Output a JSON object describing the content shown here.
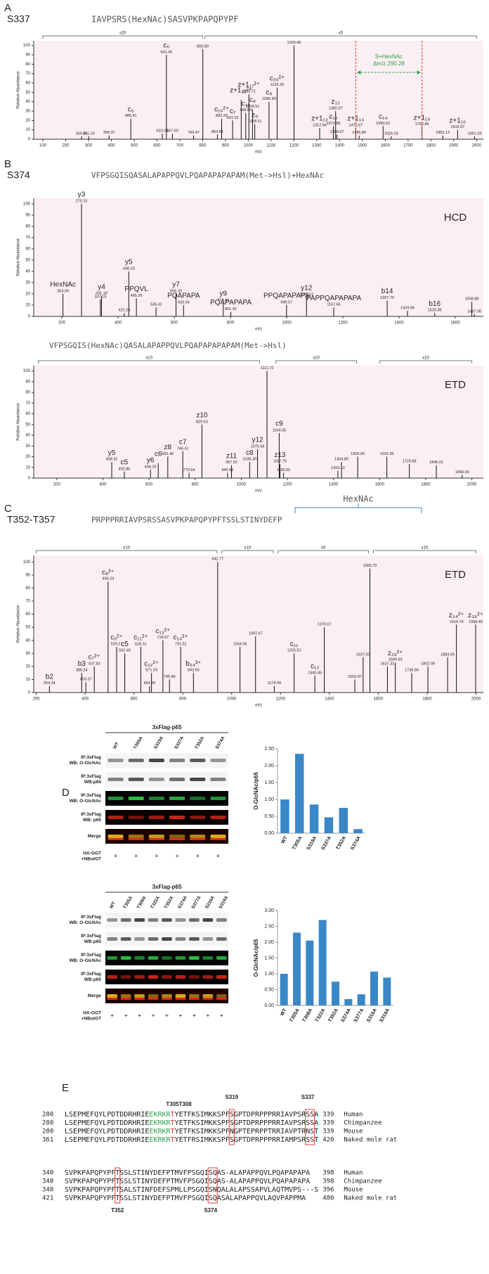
{
  "chart_data": [
    {
      "type": "spectrum",
      "letter": "A",
      "title": "S337",
      "sequence": "IAVPSRS(HexNAc)SASVPKPAPQPYPF",
      "xlabel": "m/z",
      "ylabel": "Relative Abundance",
      "background": "#fbeff3",
      "color": "#111",
      "xlim": [
        60,
        2030
      ],
      "xticks": [
        100,
        200,
        300,
        400,
        500,
        600,
        700,
        800,
        900,
        1000,
        1100,
        1200,
        1300,
        1400,
        1500,
        1600,
        1700,
        1800,
        1900,
        2000
      ],
      "ylim": [
        0,
        105
      ],
      "yticks": [
        0,
        10,
        20,
        30,
        40,
        50,
        60,
        70,
        80,
        90,
        100
      ],
      "zooms": [
        {
          "label": "x20",
          "range": [
            100,
            800
          ]
        },
        {
          "label": "x5",
          "range": [
            810,
            2000
          ]
        }
      ],
      "x": [
        269.41,
        301.24,
        390.37,
        485.41,
        623.26,
        641.45,
        667.6,
        760.47,
        800.8,
        864.81,
        883.29,
        931.52,
        969,
        988.89,
        1002.71,
        1018.51,
        1028.51,
        1090.83,
        1126.39,
        1200.46,
        1312.84,
        1372.89,
        1382.67,
        1388.67,
        1470.67,
        1485.86,
        1590.62,
        1626.03,
        1760.85,
        1852.12,
        1916.97,
        1991.39
      ],
      "values": [
        3,
        3,
        4,
        22,
        6,
        90,
        6,
        4,
        96,
        5,
        22,
        20,
        42,
        28,
        48,
        32,
        16,
        40,
        55,
        100,
        12,
        14,
        30,
        5,
        12,
        4,
        14,
        3,
        13,
        4,
        10,
        3
      ],
      "x_labels": [
        "269.41",
        "301.24",
        "390.37",
        "485.41",
        "623.26",
        "641.45",
        "667.60",
        "760.47",
        "800.80",
        "864.81",
        "883.29",
        "931.52",
        null,
        "988.89",
        "1002.71",
        "1018.51",
        "1028.51",
        "1090.83",
        "1126.39",
        "1200.46",
        "1312.84",
        "1372.89",
        "1382.67",
        "1388.67",
        "1470.67",
        "1485.86",
        "1590.62",
        "1626.03",
        "1760.85",
        "1852.12",
        "1916.97",
        "1991.39"
      ],
      "ion_labels": [
        null,
        null,
        null,
        "c₅",
        null,
        "c₆",
        null,
        null,
        null,
        null,
        "c₁₆²⁺",
        "c₇",
        "z+1₁₆²⁺",
        "c₁₈",
        "z+1₁₇²⁺",
        "c₈",
        "z₉",
        "c₉",
        "c₂₀²⁺",
        null,
        "z+1₁₂",
        "c₁₂",
        "z₁₃",
        null,
        "z+1₁₄",
        null,
        "c₁₄",
        null,
        "z+1₁₅",
        null,
        "z+1₁₆",
        null
      ],
      "annotation": {
        "lines": [
          1470.67,
          1760.85
        ],
        "text": [
          "S+HexNAc",
          "Δm/z 290.28"
        ],
        "color": "#e53935",
        "arrow_color": "#2e9d4a"
      }
    },
    {
      "type": "spectrum",
      "letter": "B",
      "title": "S374",
      "sequence": "VFPSGQISQASALAPAPPQVLPQAPAPAPAPAM(Met->Hsl)+HexNAc",
      "method": "HCD",
      "xlabel": "m/z",
      "ylabel": "Relative Abundance",
      "background": "#fbeff3",
      "color": "#111",
      "xlim": [
        100,
        1700
      ],
      "xticks": [
        200,
        400,
        600,
        800,
        1000,
        1200,
        1400,
        1600
      ],
      "ylim": [
        0,
        105
      ],
      "yticks": [
        0,
        10,
        20,
        30,
        40,
        50,
        60,
        70,
        80,
        90,
        100
      ],
      "x": [
        204.09,
        270.15,
        337.19,
        341.18,
        422.24,
        438.23,
        465.26,
        535.32,
        606.32,
        633.34,
        774.41,
        801.42,
        999.57,
        1070.57,
        1167.66,
        1357.7,
        1429.96,
        1526.85,
        1658.88,
        1667.95
      ],
      "values": [
        20,
        100,
        15,
        18,
        3,
        40,
        16,
        8,
        20,
        10,
        12,
        4,
        10,
        17,
        8,
        14,
        5,
        3,
        13,
        2
      ],
      "x_labels": [
        "204.09",
        "270.15",
        "337.19",
        "341.18",
        "422.24",
        "438.23",
        "465.26",
        "535.32",
        "606.32",
        "633.34",
        "774.41",
        "801.42",
        "999.57",
        "1070.57",
        "1167.66",
        "1357.70",
        "1429.96",
        "1526.85",
        "1658.88",
        "1667.95"
      ],
      "ion_labels": [
        "HexNAc",
        "y3",
        null,
        "y4",
        null,
        "y5",
        "PPQVL",
        null,
        "y7",
        "PQAPAPA",
        "y9",
        "PQAPAPAPA",
        "PPQAPAPAPA",
        "y12",
        "PAPPQAPAPAPA",
        "b14",
        null,
        "b16",
        null,
        null
      ]
    },
    {
      "type": "spectrum",
      "sequence": "VFPSGQIS(HexNAc)QASALAPAPPQVLPQAPAPAPAPAM(Met->Hsl)",
      "method": "ETD",
      "xlabel": "m/z",
      "ylabel": "Relative Abundance",
      "background": "#fbeff3",
      "color": "#111",
      "xlim": [
        100,
        2050
      ],
      "xticks": [
        200,
        400,
        600,
        800,
        1000,
        1200,
        1400,
        1600,
        1800,
        2000
      ],
      "ylim": [
        0,
        105
      ],
      "yticks": [
        0,
        10,
        20,
        30,
        40,
        50,
        60,
        70,
        80,
        90,
        100
      ],
      "zooms": [
        {
          "label": "x10",
          "range": [
            120,
            1080
          ]
        },
        {
          "label": "x10",
          "range": [
            1150,
            1500
          ]
        },
        {
          "label": "x10",
          "range": [
            1600,
            2000
          ]
        }
      ],
      "x": [
        438.32,
        492.86,
        606.29,
        640,
        681.4,
        746.41,
        773.64,
        829.53,
        940.52,
        957.52,
        1036.3,
        1070.58,
        1111.72,
        1164.55,
        1167.75,
        1183.55,
        1419.1,
        1434.8,
        1505,
        1631.45,
        1728.88,
        1846.01,
        1958
      ],
      "values": [
        15,
        6,
        8,
        14,
        20,
        25,
        5,
        50,
        5,
        12,
        15,
        27,
        100,
        42,
        13,
        5,
        7,
        15,
        20,
        20,
        13,
        12,
        3
      ],
      "x_labels": [
        "438.32",
        "492.86",
        "606.29",
        null,
        "681.40",
        "746.41",
        "773.64",
        "829.53",
        "940.52",
        "957.52",
        "1036.30",
        "1070.58",
        "1111.72",
        "1164.55",
        "1167.75",
        "1183.55",
        "1419.10",
        "1434.80",
        "1505.00",
        "1631.45",
        "1728.88",
        "1846.01",
        "1958.00"
      ],
      "ion_labels": [
        "y5",
        "c5",
        "y6",
        "c6",
        "z8",
        "c7",
        null,
        "z10",
        null,
        "z11",
        "c8",
        "y12",
        null,
        "c9",
        "z13",
        null,
        null,
        null,
        null,
        null,
        null,
        null,
        null
      ]
    },
    {
      "type": "spectrum",
      "letter": "C",
      "title": "T352-T357",
      "sequence": "PRPPPRRIAVPSRSSASVPKPAPQPYPFTSSLSTINYDEFP",
      "sequence_note": "HexNAc",
      "method": "ETD",
      "xlabel": "m/z",
      "ylabel": "Relative Abundance",
      "background": "#fbeff3",
      "color": "#111",
      "xlim": [
        190,
        2030
      ],
      "xticks": [
        200,
        400,
        600,
        800,
        1000,
        1200,
        1400,
        1600,
        1800,
        2000
      ],
      "ylim": [
        0,
        105
      ],
      "yticks": [
        0,
        10,
        20,
        30,
        40,
        50,
        60,
        70,
        80,
        90,
        100
      ],
      "zooms": [
        {
          "label": "x10",
          "range": [
            200,
            940
          ]
        },
        {
          "label": "x10",
          "range": [
            960,
            1170
          ]
        },
        {
          "label": "x5",
          "range": [
            1190,
            1560
          ]
        },
        {
          "label": "x10",
          "range": [
            1580,
            2000
          ]
        }
      ],
      "x": [
        254.24,
        386.24,
        403.37,
        437.83,
        494.24,
        529.27,
        562.49,
        628.31,
        664.06,
        671.93,
        718.67,
        745.49,
        791.52,
        843.65,
        942.77,
        1034.06,
        1097.67,
        1174.49,
        1255.52,
        1340.45,
        1379.07,
        1503.97,
        1537.93,
        1565.7,
        1637.31,
        1669.63,
        1736.84,
        1802.99,
        1883.65,
        1919.74,
        1998.49
      ],
      "values": [
        5,
        15,
        8,
        20,
        85,
        35,
        30,
        35,
        5,
        15,
        40,
        10,
        35,
        15,
        100,
        35,
        43,
        5,
        30,
        13,
        50,
        10,
        27,
        95,
        20,
        23,
        15,
        20,
        27,
        52,
        52
      ],
      "x_labels": [
        "254.24",
        "386.24",
        "403.37",
        "437.83",
        "494.24",
        "529.27",
        "562.49",
        "628.31",
        "664.06",
        "671.93",
        "718.67",
        "745.49",
        "791.52",
        "843.65",
        "942.77",
        "1034.06",
        "1097.67",
        "1174.49",
        "1255.52",
        "1340.45",
        "1379.07",
        "1503.97",
        "1537.93",
        "1565.70",
        "1637.31",
        "1669.63",
        "1736.84",
        "1802.99",
        "1883.65",
        "1919.74",
        "1998.49"
      ],
      "ion_labels": [
        "b2",
        "b3",
        null,
        "c₇²⁺",
        "c₈²⁺",
        "c₉²⁺",
        "c5",
        "c₁₁²⁺",
        null,
        "c₁₂²⁺",
        "c₁₃²⁺",
        null,
        "c₁₄²⁺",
        "b₂₄³⁺",
        null,
        null,
        null,
        null,
        "c₁₁",
        "c₁₂",
        null,
        null,
        null,
        null,
        null,
        "z₂₉²⁺",
        null,
        null,
        null,
        "z₃₄²⁺",
        "z₃₅²⁺"
      ]
    },
    {
      "type": "bar",
      "letter": "D",
      "ylabel": "O-GlcNAc/p65",
      "color": "#3a87c8",
      "categories": [
        "WT",
        "T305A",
        "S319A",
        "S337A",
        "T352A",
        "S374A"
      ],
      "values": [
        1.0,
        2.35,
        0.85,
        0.47,
        0.75,
        0.12
      ],
      "ylim": [
        0,
        2.5
      ],
      "yticks": [
        {
          "value": 0,
          "label": "0.00"
        },
        {
          "value": 0.5,
          "label": "0.50"
        },
        {
          "value": 1,
          "label": "1.00"
        },
        {
          "value": 1.5,
          "label": "1.50"
        },
        {
          "value": 2,
          "label": "2.00"
        },
        {
          "value": 2.5,
          "label": "2.50"
        }
      ]
    },
    {
      "type": "bar",
      "ylabel": "O-GlcNAc/p65",
      "color": "#3a87c8",
      "categories": [
        "WT",
        "T305A",
        "T308A",
        "T322A",
        "T352A",
        "S374A",
        "S377A",
        "S316A",
        "S319A"
      ],
      "values": [
        1.0,
        2.3,
        2.05,
        2.7,
        0.75,
        0.2,
        0.35,
        1.07,
        0.88
      ],
      "ylim": [
        0,
        3
      ],
      "yticks": [
        {
          "value": 0,
          "label": "0.00"
        },
        {
          "value": 0.5,
          "label": "0.50"
        },
        {
          "value": 1,
          "label": "1.00"
        },
        {
          "value": 1.5,
          "label": "1.50"
        },
        {
          "value": 2,
          "label": "2.00"
        },
        {
          "value": 2.5,
          "label": "2.50"
        },
        {
          "value": 3,
          "label": "3.00"
        }
      ]
    }
  ],
  "blots": [
    {
      "title": "3xFlag-p65",
      "lanes": [
        "WT",
        "T305A",
        "S319A",
        "S337A",
        "T352A",
        "S374A"
      ],
      "rows": [
        {
          "label": [
            "IP:3xFlag",
            "WB: O-GlcNAc"
          ],
          "style": "gray"
        },
        {
          "label": [
            "IP:3xFlag",
            "WB:p65"
          ],
          "style": "gray"
        },
        {
          "label": [
            "IP:3xFlag",
            "WB: O-GlcNAc"
          ],
          "style": "green"
        },
        {
          "label": [
            "IP:3xFlag",
            "WB: p65"
          ],
          "style": "red"
        },
        {
          "label": [
            "Merge"
          ],
          "style": "merge"
        }
      ],
      "treatment": [
        "HA-OGT",
        "+NButGT"
      ],
      "sign": "+"
    },
    {
      "title": "3xFlag-p65",
      "lanes": [
        "WT",
        "T305A",
        "T308A",
        "T322A",
        "T352A",
        "S374A",
        "S377A",
        "S316A",
        "S319A"
      ],
      "rows": [
        {
          "label": [
            "IP:3xFlag",
            "WB: O-GlcNAc"
          ],
          "style": "gray"
        },
        {
          "label": [
            "IP:3xFlag",
            "WB:p65"
          ],
          "style": "gray"
        },
        {
          "label": [
            "IP:3xFlag",
            "WB: O-GlcNAc"
          ],
          "style": "green"
        },
        {
          "label": [
            "IP:3xFlag",
            "WB:p65"
          ],
          "style": "red"
        },
        {
          "label": [
            "Merge"
          ],
          "style": "merge"
        }
      ],
      "treatment": [
        "HA-OGT",
        "+NButGT"
      ],
      "sign": "+"
    }
  ],
  "alignment": {
    "letter": "E",
    "blocks": [
      {
        "marks": [
          "T305",
          "T308",
          "S319",
          "S337"
        ],
        "rows": [
          {
            "start": 280,
            "segments": [
              {
                "text": "LSEPMEFQYLPDTDDRHRIE",
                "color": "#222"
              },
              {
                "text": "EKRKR",
                "color": "#2e9d4a"
              },
              {
                "text": "T",
                "color": "#e53935"
              },
              {
                "text": "YETFKSIMKKSPFSGPTDPRPPPRRIAVPSRSSA",
                "color": "#222"
              }
            ],
            "end": 339,
            "species": "Human"
          },
          {
            "start": 280,
            "segments": [
              {
                "text": "LSEPMEFQYLPDTDDRHRIE",
                "color": "#222"
              },
              {
                "text": "EKRKR",
                "color": "#2e9d4a"
              },
              {
                "text": "T",
                "color": "#e53935"
              },
              {
                "text": "YETFKSIMKKSPFSGPTDPRPPPRRIAVPSRSSA",
                "color": "#222"
              }
            ],
            "end": 339,
            "species": "Chimpanzee"
          },
          {
            "start": 280,
            "segments": [
              {
                "text": "LSEPMEFQYLPDTDDRHRIE",
                "color": "#222"
              },
              {
                "text": "EKRKR",
                "color": "#2e9d4a"
              },
              {
                "text": "T",
                "color": "#e53935"
              },
              {
                "text": "YETFKSIMKKSPFNGPTEPRPPTRRIAVPTRNST",
                "color": "#222"
              }
            ],
            "end": 339,
            "species": "Mouse"
          },
          {
            "start": 361,
            "segments": [
              {
                "text": "LSEPMEFQYLPDTDDRHRIE",
                "color": "#222"
              },
              {
                "text": "EKRKR",
                "color": "#2e9d4a"
              },
              {
                "text": "T",
                "color": "#e53935"
              },
              {
                "text": "YETFRSIMKKSPFSGPTDPRPPPRRIAMPSRSST",
                "color": "#222"
              }
            ],
            "end": 420,
            "species": "Naked mole rat"
          }
        ]
      },
      {
        "marks": [
          "T352",
          "S374"
        ],
        "rows": [
          {
            "start": 340,
            "segments": [
              {
                "text": "SVPKPAPQPYPFTSSLSTINYDEFPTMVFPSGQISQAS-ALAPAPPQVLPQAPAPAPA",
                "color": "#222"
              }
            ],
            "end": 398,
            "species": "Human"
          },
          {
            "start": 340,
            "segments": [
              {
                "text": "SVPKPAPQPYPFTSSLSTINYDEFPTMVFPSGQISQAS-ALAPAPPQVLPQAPAPAPA",
                "color": "#222"
              }
            ],
            "end": 398,
            "species": "Chimpanzee"
          },
          {
            "start": 340,
            "segments": [
              {
                "text": "SVPKPAPQPYPFTSALSTINFDEFSPMLLPSGQISNQALALAPSSAPVLAQTMVPS---S",
                "color": "#222"
              }
            ],
            "end": 396,
            "species": "Mouse"
          },
          {
            "start": 421,
            "segments": [
              {
                "text": "SVPKPAPQPYPFTSSLSTINYDEFPTMVFPSGQISQASALAPAPPQVLAQVPAPPMA",
                "color": "#222"
              }
            ],
            "end": 480,
            "species": "Naked mole rat"
          }
        ]
      }
    ]
  }
}
